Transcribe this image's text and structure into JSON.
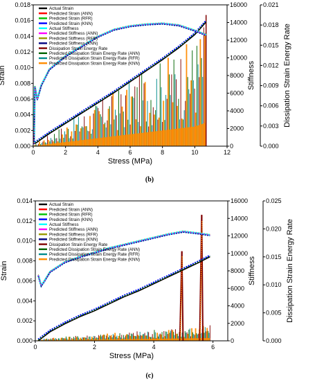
{
  "chart_data": [
    {
      "type": "line",
      "panel_label": "(b)",
      "xlabel": "Stress (MPa)",
      "ylabel": "Strain",
      "y2label": "Stiffness",
      "y3label": "Dissipation Strain Energy Rate",
      "xlim": [
        0,
        12
      ],
      "ylim": [
        0,
        0.018
      ],
      "y2lim": [
        0,
        16000
      ],
      "y3lim": [
        0,
        0.021
      ],
      "x_ticks": [
        "0",
        "2",
        "4",
        "6",
        "8",
        "10",
        "12"
      ],
      "y_ticks": [
        "0.000",
        "0.002",
        "0.004",
        "0.006",
        "0.008",
        "0.010",
        "0.012",
        "0.014",
        "0.016",
        "0.018"
      ],
      "y2_ticks": [
        "0",
        "2000",
        "4000",
        "6000",
        "8000",
        "10000",
        "12000",
        "14000",
        "16000"
      ],
      "y3_ticks": [
        "0.000",
        "0.003",
        "0.006",
        "0.009",
        "0.012",
        "0.015",
        "0.018",
        "0.021"
      ],
      "legend": [
        {
          "label": "Actual Strain",
          "color": "#000000"
        },
        {
          "label": "Predicted Strain (ANN)",
          "color": "#ff0000"
        },
        {
          "label": "Predicted Strain (RFR)",
          "color": "#00c000"
        },
        {
          "label": "Predicted Strain (KNN)",
          "color": "#0000ff"
        },
        {
          "label": "Actual Stiffness",
          "color": "#00ffff"
        },
        {
          "label": "Predicted Stiffness (ANN)",
          "color": "#ff00ff"
        },
        {
          "label": "Predicted Stiffness (RFR)",
          "color": "#999900"
        },
        {
          "label": "Predicted Stiffness (KNN)",
          "color": "#000080"
        },
        {
          "label": "Dissipation Strain Energy Rate",
          "color": "#800000"
        },
        {
          "label": "Predicted Dissipation Strain Energy Rate (ANN)",
          "color": "#006400"
        },
        {
          "label": "Predicted Dissipation Strain Energy Rate (RFR)",
          "color": "#008b8b"
        },
        {
          "label": "Predicted Dissipation Strain Energy Rate (KNN)",
          "color": "#ff8c00"
        }
      ],
      "strain_curve": {
        "x": [
          0.1,
          1,
          2,
          3,
          4,
          5,
          6,
          7,
          8,
          9,
          10,
          10.7
        ],
        "y": [
          0.0003,
          0.0016,
          0.0029,
          0.0042,
          0.0055,
          0.0068,
          0.0082,
          0.0096,
          0.011,
          0.0125,
          0.0142,
          0.0158
        ]
      },
      "stiffness_curve": {
        "x": [
          0.05,
          0.1,
          0.25,
          0.5,
          1,
          2,
          3,
          4,
          5,
          6,
          7,
          8,
          9,
          10,
          10.7
        ],
        "y": [
          300,
          6800,
          5300,
          6900,
          8700,
          10200,
          11300,
          12400,
          13200,
          13600,
          13800,
          13900,
          13700,
          13100,
          12600
        ]
      },
      "dser_envelope": {
        "x": [
          0.1,
          1,
          2,
          3,
          4,
          5,
          6,
          7,
          8,
          9,
          10,
          10.7
        ],
        "y": [
          0.0002,
          0.0018,
          0.0034,
          0.005,
          0.0066,
          0.0082,
          0.0098,
          0.0114,
          0.013,
          0.0146,
          0.0162,
          0.0195
        ]
      }
    },
    {
      "type": "line",
      "panel_label": "(c)",
      "xlabel": "Stress (MPa)",
      "ylabel": "Strain",
      "y2label": "Stiffness",
      "y3label": "Dissipation Strain Energy Rate",
      "xlim": [
        0,
        6.5
      ],
      "ylim": [
        0,
        0.014
      ],
      "y2lim": [
        0,
        16000
      ],
      "y3lim": [
        0,
        0.025
      ],
      "x_ticks": [
        "0",
        "2",
        "4",
        "6"
      ],
      "y_ticks": [
        "0.000",
        "0.002",
        "0.004",
        "0.006",
        "0.008",
        "0.010",
        "0.012",
        "0.014"
      ],
      "y2_ticks": [
        "0",
        "2000",
        "4000",
        "6000",
        "8000",
        "10000",
        "12000",
        "14000",
        "16000"
      ],
      "y3_ticks": [
        "0.000",
        "0.005",
        "0.010",
        "0.015",
        "0.020",
        "0.025"
      ],
      "legend": [
        {
          "label": "Actual Strain",
          "color": "#000000"
        },
        {
          "label": "Predicted Strain (ANN)",
          "color": "#ff0000"
        },
        {
          "label": "Predicted Strain (RFR)",
          "color": "#00c000"
        },
        {
          "label": "Predicted Strain (KNN)",
          "color": "#0000ff"
        },
        {
          "label": "Actual Stiffness",
          "color": "#00ffff"
        },
        {
          "label": "Predicted Stiffness (ANN)",
          "color": "#ff00ff"
        },
        {
          "label": "Predicted Stiffness (RFR)",
          "color": "#999900"
        },
        {
          "label": "Predicted Stiffness (KNN)",
          "color": "#000080"
        },
        {
          "label": "Dissipation Strain Energy Rate",
          "color": "#800000"
        },
        {
          "label": "Predicted Dissipation Strain Energy Rate (ANN)",
          "color": "#006400"
        },
        {
          "label": "Predicted Dissipation Strain Energy Rate (RFR)",
          "color": "#008b8b"
        },
        {
          "label": "Predicted Dissipation Strain Energy Rate (KNN)",
          "color": "#ff8c00"
        }
      ],
      "strain_curve": {
        "x": [
          0.1,
          0.5,
          1,
          1.5,
          2,
          2.5,
          3,
          3.5,
          4,
          4.5,
          5,
          5.5,
          5.9
        ],
        "y": [
          0.0,
          0.0009,
          0.0017,
          0.0024,
          0.003,
          0.0037,
          0.0044,
          0.005,
          0.0057,
          0.0064,
          0.0071,
          0.0078,
          0.0084
        ]
      },
      "stiffness_curve": {
        "x": [
          0.1,
          0.2,
          0.3,
          0.5,
          1,
          1.5,
          2,
          2.5,
          3,
          3.5,
          4,
          4.5,
          5,
          5.5,
          5.9
        ],
        "y": [
          7500,
          6300,
          6800,
          7900,
          9000,
          9600,
          10100,
          10600,
          11000,
          11400,
          11800,
          12200,
          12500,
          12300,
          12100
        ]
      },
      "dser_spikes": [
        {
          "x0": 4.88,
          "y0": 0.0,
          "x1": 4.95,
          "y1": 0.016
        },
        {
          "x0": 5.55,
          "y0": 0.0,
          "x1": 5.62,
          "y1": 0.0225
        }
      ]
    }
  ]
}
